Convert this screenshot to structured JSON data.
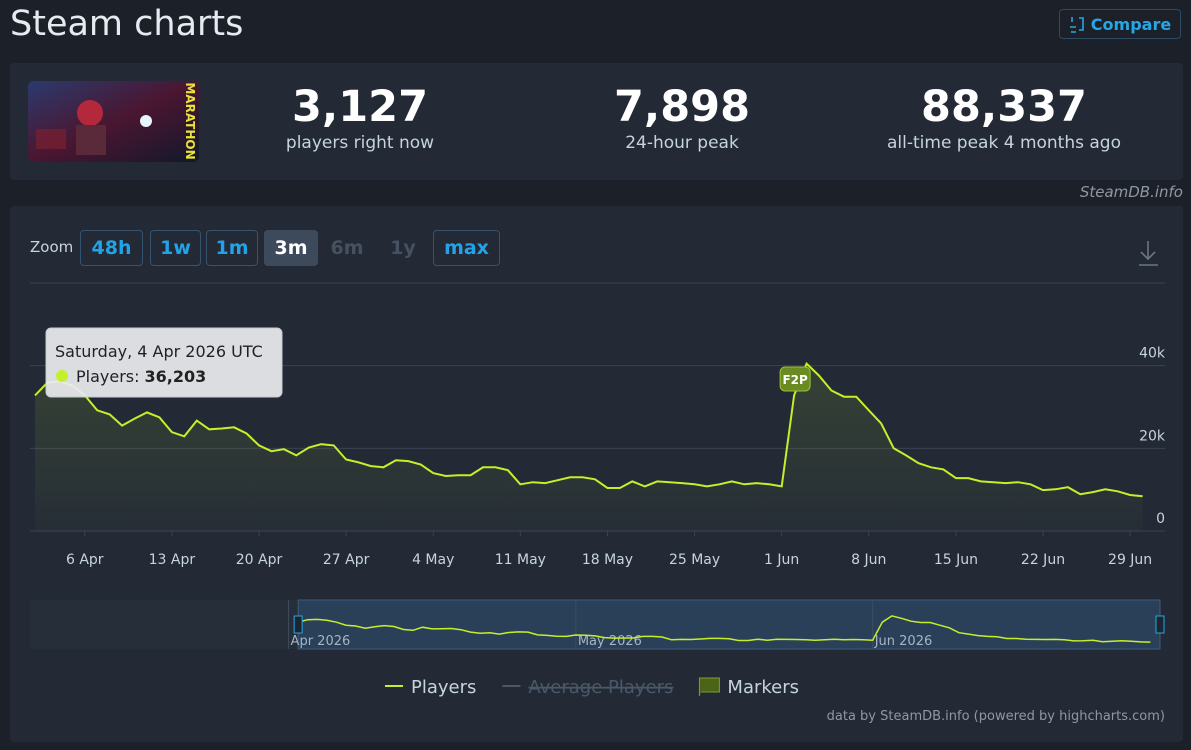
{
  "header": {
    "title": "Steam charts",
    "compare": "Compare"
  },
  "stats": {
    "game_logo_text": "MARATHON",
    "items": [
      {
        "value": "3,127",
        "label": "players right now"
      },
      {
        "value": "7,898",
        "label": "24-hour peak"
      },
      {
        "value": "88,337",
        "label": "all-time peak 4 months ago"
      }
    ],
    "source": "SteamDB.info"
  },
  "controls": {
    "zoom_label": "Zoom",
    "buttons": [
      {
        "label": "48h",
        "state": "enabled"
      },
      {
        "label": "1w",
        "state": "enabled"
      },
      {
        "label": "1m",
        "state": "enabled"
      },
      {
        "label": "3m",
        "state": "active"
      },
      {
        "label": "6m",
        "state": "disabled"
      },
      {
        "label": "1y",
        "state": "disabled"
      },
      {
        "label": "max",
        "state": "enabled"
      }
    ]
  },
  "chart_data": {
    "type": "line",
    "x": [
      "2026-04-02",
      "2026-04-03",
      "2026-04-04",
      "2026-04-05",
      "2026-04-06",
      "2026-04-07",
      "2026-04-08",
      "2026-04-09",
      "2026-04-10",
      "2026-04-11",
      "2026-04-12",
      "2026-04-13",
      "2026-04-14",
      "2026-04-15",
      "2026-04-16",
      "2026-04-17",
      "2026-04-18",
      "2026-04-19",
      "2026-04-20",
      "2026-04-21",
      "2026-04-22",
      "2026-04-23",
      "2026-04-24",
      "2026-04-25",
      "2026-04-26",
      "2026-04-27",
      "2026-04-28",
      "2026-04-29",
      "2026-04-30",
      "2026-05-01",
      "2026-05-02",
      "2026-05-03",
      "2026-05-04",
      "2026-05-05",
      "2026-05-06",
      "2026-05-07",
      "2026-05-08",
      "2026-05-09",
      "2026-05-10",
      "2026-05-11",
      "2026-05-12",
      "2026-05-13",
      "2026-05-14",
      "2026-05-15",
      "2026-05-16",
      "2026-05-17",
      "2026-05-18",
      "2026-05-19",
      "2026-05-20",
      "2026-05-21",
      "2026-05-22",
      "2026-05-23",
      "2026-05-24",
      "2026-05-25",
      "2026-05-26",
      "2026-05-27",
      "2026-05-28",
      "2026-05-29",
      "2026-05-30",
      "2026-05-31",
      "2026-06-01",
      "2026-06-02",
      "2026-06-03",
      "2026-06-04",
      "2026-06-05",
      "2026-06-06",
      "2026-06-07",
      "2026-06-08",
      "2026-06-09",
      "2026-06-10",
      "2026-06-11",
      "2026-06-12",
      "2026-06-13",
      "2026-06-14",
      "2026-06-15",
      "2026-06-16",
      "2026-06-17",
      "2026-06-18",
      "2026-06-19",
      "2026-06-20",
      "2026-06-21",
      "2026-06-22",
      "2026-06-23",
      "2026-06-24",
      "2026-06-25",
      "2026-06-26",
      "2026-06-27",
      "2026-06-28",
      "2026-06-29",
      "2026-06-30"
    ],
    "series": [
      {
        "name": "Players",
        "color": "#c4f02a",
        "values": [
          32800,
          35900,
          36203,
          35200,
          32800,
          29200,
          28200,
          25500,
          27200,
          28700,
          27500,
          23900,
          22900,
          26700,
          24600,
          24800,
          25100,
          23600,
          20700,
          19300,
          19800,
          18300,
          20200,
          21000,
          20700,
          17300,
          16600,
          15700,
          15400,
          17100,
          16900,
          16100,
          14000,
          13300,
          13500,
          13500,
          15400,
          15400,
          14700,
          11300,
          11800,
          11600,
          12300,
          13000,
          13000,
          12500,
          10400,
          10400,
          12000,
          10800,
          12000,
          11800,
          11600,
          11300,
          10800,
          11300,
          12000,
          11300,
          11600,
          11300,
          10800,
          32800,
          40500,
          37600,
          34000,
          32500,
          32500,
          29200,
          26000,
          20000,
          18300,
          16400,
          15400,
          14900,
          12800,
          12800,
          12000,
          11800,
          11600,
          11800,
          11300,
          9900,
          10100,
          10600,
          8900,
          9400,
          10100,
          9600,
          8700,
          8400
        ]
      },
      {
        "name": "Average Players",
        "color": "#4b5868",
        "visible": false
      }
    ],
    "xlim": [
      "2026-04-02",
      "2026-07-01"
    ],
    "xticks": [
      {
        "value": "2026-04-06",
        "label": "6 Apr"
      },
      {
        "value": "2026-04-13",
        "label": "13 Apr"
      },
      {
        "value": "2026-04-20",
        "label": "20 Apr"
      },
      {
        "value": "2026-04-27",
        "label": "27 Apr"
      },
      {
        "value": "2026-05-04",
        "label": "4 May"
      },
      {
        "value": "2026-05-11",
        "label": "11 May"
      },
      {
        "value": "2026-05-18",
        "label": "18 May"
      },
      {
        "value": "2026-05-25",
        "label": "25 May"
      },
      {
        "value": "2026-06-01",
        "label": "1 Jun"
      },
      {
        "value": "2026-06-08",
        "label": "8 Jun"
      },
      {
        "value": "2026-06-15",
        "label": "15 Jun"
      },
      {
        "value": "2026-06-22",
        "label": "22 Jun"
      },
      {
        "value": "2026-06-29",
        "label": "29 Jun"
      }
    ],
    "ylim": [
      0,
      60000
    ],
    "yticks": [
      0,
      {
        "value": 20000,
        "label": "20k"
      },
      {
        "value": 40000,
        "label": "40k"
      }
    ],
    "grid": true,
    "markers": [
      {
        "x": "2026-06-02",
        "label": "F2P"
      }
    ],
    "markers_legend": "Markers",
    "tooltip": {
      "date": "Saturday, 4 Apr 2026 UTC",
      "label": "Players:",
      "value": 36203,
      "value_label": "36,203"
    },
    "navigator": {
      "xlim": [
        "2026-03-05",
        "2026-07-01"
      ],
      "labels": [
        {
          "value": "2026-04-01",
          "label": "Apr 2026"
        },
        {
          "value": "2026-05-01",
          "label": "May 2026"
        },
        {
          "value": "2026-06-01",
          "label": "Jun 2026"
        }
      ],
      "selection": [
        "2026-04-02",
        "2026-07-01"
      ]
    },
    "credit": "data by SteamDB.info (powered by highcharts.com)"
  }
}
